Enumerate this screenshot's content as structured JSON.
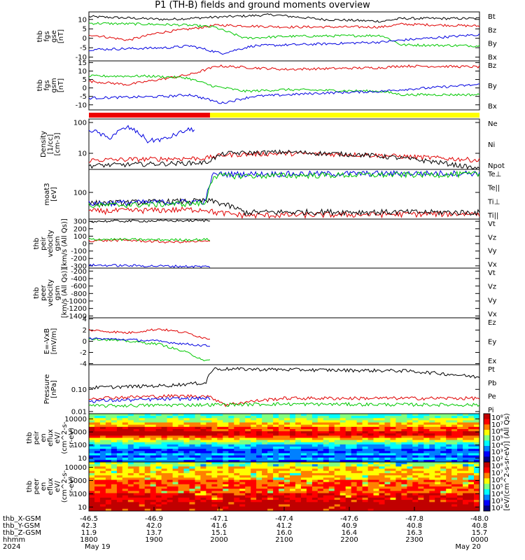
{
  "title": "P1 (TH-B) fields and ground moments overview",
  "colors": {
    "red": "#e00000",
    "green": "#00c800",
    "blue": "#0000e0",
    "black": "#000000",
    "yellow": "#ffff00"
  },
  "chart_data": [
    {
      "type": "line",
      "panel": "thb fgs gse",
      "ylabel": [
        "thb",
        "fgs",
        "gse",
        "[nT]"
      ],
      "ylim": [
        -12,
        14
      ],
      "ticks": [
        -10,
        -5,
        0,
        5,
        10
      ],
      "series": [
        {
          "name": "Bt",
          "color": "black",
          "trend": [
            [
              0,
              11.5
            ],
            [
              0.2,
              10
            ],
            [
              0.3,
              11
            ],
            [
              0.42,
              12
            ],
            [
              0.47,
              12.5
            ],
            [
              0.6,
              10
            ],
            [
              0.75,
              9
            ],
            [
              0.8,
              10.5
            ],
            [
              1,
              10.5
            ]
          ]
        },
        {
          "name": "Bz",
          "color": "red",
          "trend": [
            [
              0,
              2
            ],
            [
              0.1,
              -1
            ],
            [
              0.18,
              3
            ],
            [
              0.26,
              5
            ],
            [
              0.33,
              7
            ],
            [
              0.5,
              6
            ],
            [
              0.75,
              6
            ],
            [
              0.8,
              7.5
            ],
            [
              1,
              6.5
            ]
          ]
        },
        {
          "name": "By",
          "color": "green",
          "trend": [
            [
              0,
              8
            ],
            [
              0.15,
              7.5
            ],
            [
              0.25,
              7
            ],
            [
              0.32,
              6
            ],
            [
              0.4,
              0
            ],
            [
              0.5,
              1
            ],
            [
              0.75,
              1.5
            ],
            [
              0.8,
              -3.5
            ],
            [
              1,
              -4
            ]
          ]
        },
        {
          "name": "Bx",
          "color": "blue",
          "trend": [
            [
              0,
              -6
            ],
            [
              0.2,
              -5
            ],
            [
              0.26,
              -4
            ],
            [
              0.34,
              -8
            ],
            [
              0.42,
              -4
            ],
            [
              0.6,
              -3
            ],
            [
              0.75,
              -2
            ],
            [
              0.8,
              -1
            ],
            [
              1,
              2
            ]
          ]
        }
      ]
    },
    {
      "type": "line",
      "panel": "thb fgs gsm",
      "ylabel": [
        "thb",
        "fgs",
        "gsm",
        "[nT]"
      ],
      "ylim": [
        -13,
        16
      ],
      "ticks": [
        -10,
        -5,
        0,
        5,
        10,
        15
      ],
      "series": [
        {
          "name": "Bz",
          "color": "red",
          "trend": [
            [
              0,
              4
            ],
            [
              0.1,
              2
            ],
            [
              0.18,
              5
            ],
            [
              0.26,
              8
            ],
            [
              0.33,
              13
            ],
            [
              0.5,
              11
            ],
            [
              0.75,
              12
            ],
            [
              0.8,
              13
            ],
            [
              1,
              12.5
            ]
          ]
        },
        {
          "name": "By",
          "color": "green",
          "trend": [
            [
              0,
              7
            ],
            [
              0.15,
              7
            ],
            [
              0.25,
              6
            ],
            [
              0.32,
              1
            ],
            [
              0.4,
              -2
            ],
            [
              0.5,
              -1
            ],
            [
              0.75,
              -2
            ],
            [
              0.8,
              -4
            ],
            [
              1,
              -4
            ]
          ]
        },
        {
          "name": "Bx",
          "color": "blue",
          "trend": [
            [
              0,
              -6
            ],
            [
              0.2,
              -5
            ],
            [
              0.26,
              -4
            ],
            [
              0.34,
              -9
            ],
            [
              0.42,
              -5
            ],
            [
              0.6,
              -3
            ],
            [
              0.75,
              -2
            ],
            [
              0.8,
              -1
            ],
            [
              1,
              2
            ]
          ]
        }
      ]
    },
    {
      "type": "line",
      "panel": "Density",
      "ylabel": [
        "Density",
        "[1/cc]",
        "[cm-3]"
      ],
      "yscale": "log",
      "ylim": [
        3,
        130
      ],
      "ticks": [
        10,
        100
      ],
      "tick_labels": [
        "10",
        "100"
      ],
      "series": [
        {
          "name": "Ne",
          "color": "red",
          "trend": [
            [
              0,
              6
            ],
            [
              0.3,
              7
            ],
            [
              0.35,
              9
            ],
            [
              0.5,
              10
            ],
            [
              0.7,
              9
            ],
            [
              0.9,
              7
            ],
            [
              1,
              6
            ]
          ]
        },
        {
          "name": "Ni",
          "color": "black",
          "trend": [
            [
              0,
              4
            ],
            [
              0.3,
              5
            ],
            [
              0.35,
              10
            ],
            [
              0.5,
              11
            ],
            [
              0.7,
              9
            ],
            [
              0.9,
              5
            ],
            [
              1,
              3
            ]
          ]
        },
        {
          "name": "Npot",
          "color": "blue",
          "trend": [
            [
              0,
              60
            ],
            [
              0.05,
              30
            ],
            [
              0.1,
              70
            ],
            [
              0.15,
              25
            ],
            [
              0.2,
              30
            ],
            [
              0.26,
              60
            ]
          ],
          "end": 0.27
        }
      ]
    },
    {
      "type": "line",
      "panel": "moat3",
      "ylabel": [
        "moat3",
        "[eV]"
      ],
      "yscale": "log",
      "ylim": [
        20,
        400
      ],
      "ticks": [
        100
      ],
      "tick_labels": [
        "100"
      ],
      "series": [
        {
          "name": "Te⊥",
          "color": "red",
          "trend": [
            [
              0,
              32
            ],
            [
              0.3,
              36
            ],
            [
              0.32,
              30
            ],
            [
              0.4,
              25
            ],
            [
              0.6,
              26
            ],
            [
              1,
              28
            ]
          ]
        },
        {
          "name": "Te||",
          "color": "black",
          "trend": [
            [
              0,
              52
            ],
            [
              0.3,
              60
            ],
            [
              0.32,
              58
            ],
            [
              0.4,
              30
            ],
            [
              0.6,
              31
            ],
            [
              1,
              30
            ]
          ]
        },
        {
          "name": "Ti⊥",
          "color": "blue",
          "trend": [
            [
              0,
              52
            ],
            [
              0.3,
              58
            ],
            [
              0.32,
              300
            ],
            [
              1,
              320
            ]
          ]
        },
        {
          "name": "Ti||",
          "color": "green",
          "trend": [
            [
              0,
              45
            ],
            [
              0.3,
              52
            ],
            [
              0.32,
              270
            ],
            [
              1,
              300
            ]
          ]
        }
      ]
    },
    {
      "type": "line",
      "panel": "thb peir velocity gsm",
      "ylabel": [
        "thb",
        "peir",
        "velocity",
        "gsm",
        "[km/s (All Qs)]"
      ],
      "ylim": [
        -330,
        330
      ],
      "ticks": [
        -300,
        -200,
        -100,
        0,
        100,
        200,
        300
      ],
      "series": [
        {
          "name": "Vt",
          "color": "black",
          "trend": [
            [
              0,
              300
            ],
            [
              0.3,
              310
            ]
          ],
          "end": 0.31
        },
        {
          "name": "Vz",
          "color": "red",
          "trend": [
            [
              0,
              40
            ],
            [
              0.1,
              45
            ],
            [
              0.2,
              20
            ],
            [
              0.3,
              30
            ]
          ],
          "end": 0.31
        },
        {
          "name": "Vy",
          "color": "green",
          "trend": [
            [
              0,
              60
            ],
            [
              0.2,
              50
            ],
            [
              0.3,
              55
            ]
          ],
          "end": 0.31
        },
        {
          "name": "Vx",
          "color": "blue",
          "trend": [
            [
              0,
              -290
            ],
            [
              0.15,
              -300
            ],
            [
              0.3,
              -310
            ]
          ],
          "end": 0.31
        }
      ]
    },
    {
      "type": "line",
      "panel": "thb peer velocity gsm",
      "ylabel": [
        "thb",
        "peer",
        "velocity",
        "gsm",
        "[km/s (All Qs)]"
      ],
      "ylim": [
        -1450,
        -120
      ],
      "ticks": [
        -1400,
        -1200,
        -1000,
        -800,
        -600,
        -400,
        -200
      ],
      "series": [
        {
          "name": "Vt",
          "color": "black"
        },
        {
          "name": "Vz",
          "color": "red"
        },
        {
          "name": "Vy",
          "color": "green"
        },
        {
          "name": "Vx",
          "color": "blue"
        }
      ]
    },
    {
      "type": "line",
      "panel": "E=-VxB",
      "ylabel": [
        "E=-VxB",
        "[mV/m]"
      ],
      "ylim": [
        -4.2,
        4.2
      ],
      "ticks": [
        -4,
        -2,
        0,
        2,
        4
      ],
      "series": [
        {
          "name": "Ez",
          "color": "red",
          "trend": [
            [
              0,
              2
            ],
            [
              0.1,
              1.5
            ],
            [
              0.18,
              2.2
            ],
            [
              0.25,
              1.5
            ],
            [
              0.3,
              0.5
            ]
          ],
          "end": 0.31
        },
        {
          "name": "Ey",
          "color": "green",
          "trend": [
            [
              0,
              0.5
            ],
            [
              0.1,
              0
            ],
            [
              0.18,
              -0.5
            ],
            [
              0.25,
              -2
            ],
            [
              0.3,
              -3.5
            ]
          ],
          "end": 0.31
        },
        {
          "name": "Ex",
          "color": "blue",
          "trend": [
            [
              0,
              0.5
            ],
            [
              0.1,
              0.3
            ],
            [
              0.18,
              0
            ],
            [
              0.25,
              -0.5
            ],
            [
              0.3,
              -0.8
            ]
          ],
          "end": 0.31
        }
      ]
    },
    {
      "type": "line",
      "panel": "Pressure",
      "ylabel": [
        "Pressure",
        "[nPa]"
      ],
      "yscale": "log",
      "ylim": [
        0.008,
        1.3
      ],
      "ticks": [
        0.01,
        0.1
      ],
      "tick_labels": [
        "0.01",
        "0.10"
      ],
      "series": [
        {
          "name": "Pt",
          "color": "black",
          "trend": [
            [
              0,
              0.12
            ],
            [
              0.2,
              0.15
            ],
            [
              0.3,
              0.2
            ],
            [
              0.32,
              0.85
            ],
            [
              0.6,
              0.75
            ],
            [
              0.8,
              0.7
            ],
            [
              1,
              0.35
            ]
          ]
        },
        {
          "name": "Pb",
          "color": "red",
          "trend": [
            [
              0,
              0.04
            ],
            [
              0.2,
              0.05
            ],
            [
              0.3,
              0.05
            ],
            [
              0.35,
              0.02
            ],
            [
              0.5,
              0.04
            ],
            [
              0.8,
              0.04
            ],
            [
              1,
              0.04
            ]
          ]
        },
        {
          "name": "Pe",
          "color": "green",
          "trend": [
            [
              0,
              0.018
            ],
            [
              0.5,
              0.022
            ],
            [
              1,
              0.02
            ]
          ]
        },
        {
          "name": "Pi",
          "color": "blue",
          "trend": [
            [
              0,
              0.03
            ],
            [
              0.3,
              0.04
            ]
          ],
          "end": 0.31
        }
      ]
    },
    {
      "type": "heatmap",
      "panel": "thb peir en eflux",
      "ylabel": [
        "thb",
        "peir",
        "en",
        "eflux",
        "eV/",
        "(cm^2-s-",
        "sr-eV)"
      ],
      "yscale": "log",
      "ylim": [
        5,
        25000
      ],
      "ticks": [
        10,
        100,
        1000,
        10000
      ],
      "tick_labels": [
        "10",
        "100",
        "1000",
        "10000"
      ]
    },
    {
      "type": "heatmap",
      "panel": "thb peer en eflux",
      "ylabel": [
        "thb",
        "peer",
        "en",
        "eflux",
        "eV/",
        "(cm^2-s-",
        "sr-eV)"
      ],
      "yscale": "log",
      "ylim": [
        5,
        25000
      ],
      "ticks": [
        10,
        100,
        1000,
        10000
      ],
      "tick_labels": [
        "10",
        "100",
        "1000",
        "10000"
      ]
    }
  ],
  "mode_bar": {
    "red_until": 0.31,
    "segments": [
      "red",
      "yellow"
    ]
  },
  "colorbar": {
    "tick_labels": [
      "10⁸",
      "10⁷",
      "10⁶",
      "10⁵",
      "10⁴",
      "10³",
      "10²"
    ],
    "tick_labels_2": [
      "10⁸",
      "10⁷",
      "10⁶",
      "10⁵",
      "10⁴",
      "10³",
      "10²"
    ],
    "label": "[eV/(cm^2-s-sr-eV)] (All Qs)"
  },
  "x_axis": {
    "row_labels": [
      "thb_X-GSM",
      "thb_Y-GSM",
      "thb_Z-GSM",
      "hhmm",
      "2024"
    ],
    "columns": [
      [
        "-46.5",
        "42.3",
        "11.9",
        "1800",
        "May 19"
      ],
      [
        "-46.9",
        "42.0",
        "13.7",
        "1900",
        ""
      ],
      [
        "-47.1",
        "41.6",
        "15.1",
        "2000",
        ""
      ],
      [
        "-47.4",
        "41.2",
        "16.0",
        "2100",
        ""
      ],
      [
        "-47.6",
        "40.9",
        "16.4",
        "2200",
        ""
      ],
      [
        "-47.8",
        "40.8",
        "16.3",
        "2300",
        ""
      ],
      [
        "-48.0",
        "40.8",
        "15.7",
        "0000",
        "May 20"
      ]
    ]
  }
}
